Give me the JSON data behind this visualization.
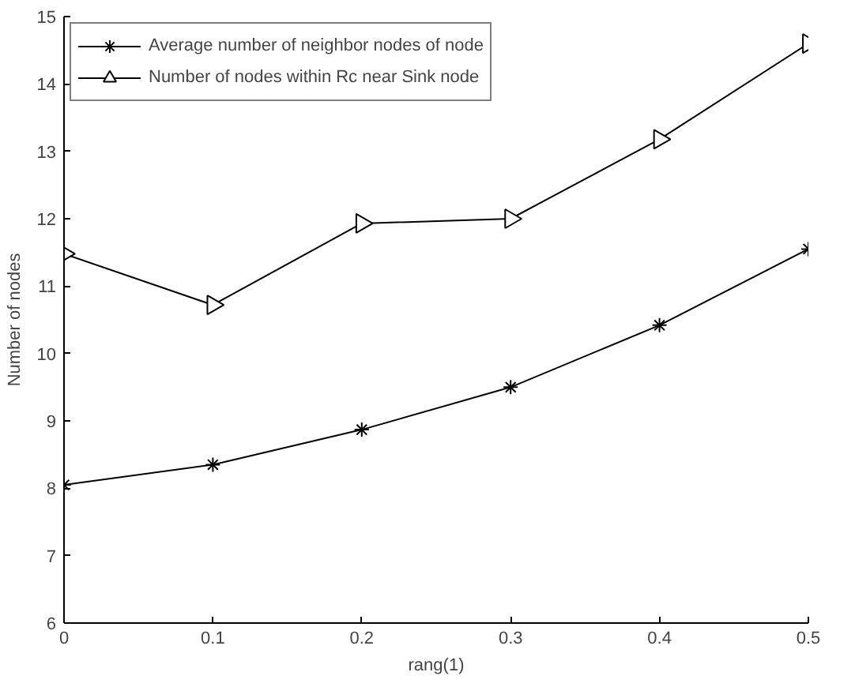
{
  "chart_data": {
    "type": "line",
    "xlabel": "rang(1)",
    "ylabel": "Number of nodes",
    "x": [
      0,
      0.1,
      0.2,
      0.3,
      0.4,
      0.5
    ],
    "series": [
      {
        "name": "Average number of neighbor nodes of node",
        "color": "#000000",
        "marker": "cross",
        "values": [
          8.05,
          8.35,
          8.87,
          9.5,
          10.42,
          11.55
        ]
      },
      {
        "name": "Number of nodes within Rc near Sink node",
        "color": "#000000",
        "marker": "triangle",
        "values": [
          11.48,
          10.72,
          11.93,
          12.0,
          13.18,
          14.6
        ]
      }
    ],
    "xlim": [
      0,
      0.5
    ],
    "ylim": [
      6,
      15
    ],
    "xticks": [
      0,
      0.1,
      0.2,
      0.3,
      0.4,
      0.5
    ],
    "yticks": [
      6,
      7,
      8,
      9,
      10,
      11,
      12,
      13,
      14,
      15
    ],
    "grid": false,
    "legend": "top left",
    "line_style": "solid"
  }
}
